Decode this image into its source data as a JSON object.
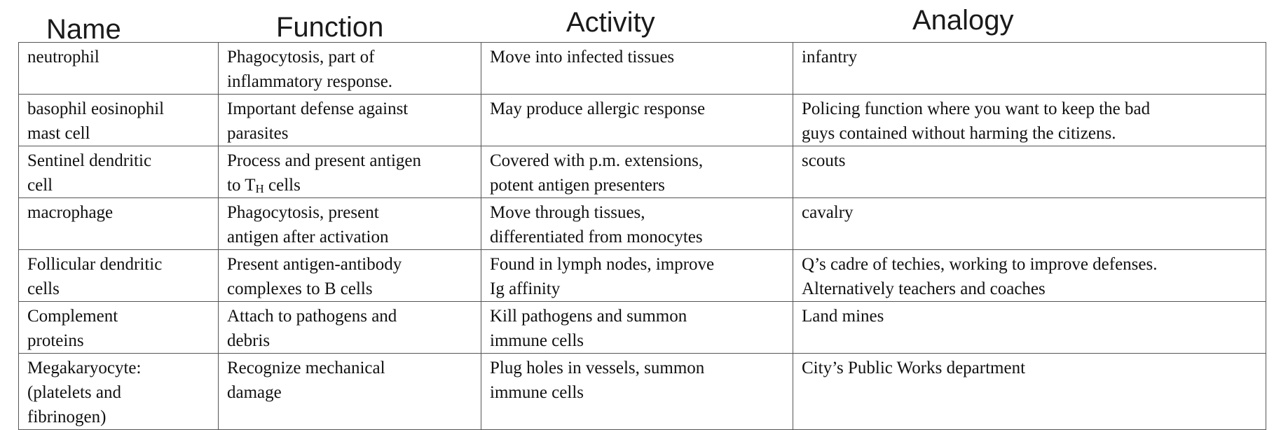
{
  "headers": {
    "name": "Name",
    "function": "Function",
    "activity": "Activity",
    "analogy": "Analogy"
  },
  "rows": [
    {
      "name": [
        "neutrophil"
      ],
      "function": [
        "Phagocytosis, part of",
        "inflammatory response."
      ],
      "activity": [
        "Move into infected tissues"
      ],
      "analogy": [
        "infantry"
      ]
    },
    {
      "name": [
        "basophil eosinophil",
        "mast cell"
      ],
      "function": [
        "Important defense against",
        "parasites"
      ],
      "activity": [
        "May produce allergic response"
      ],
      "analogy": [
        "Policing function where you want to keep the bad",
        "guys contained without harming the citizens."
      ]
    },
    {
      "name": [
        "Sentinel dendritic",
        "cell"
      ],
      "function": [
        "Process and present antigen"
      ],
      "function_line2": {
        "prefix": "to T",
        "subscript": "H",
        "suffix": " cells"
      },
      "activity": [
        "Covered with p.m. extensions,",
        "potent antigen presenters"
      ],
      "analogy": [
        "scouts"
      ]
    },
    {
      "name": [
        "macrophage"
      ],
      "function": [
        "Phagocytosis, present",
        "antigen after activation"
      ],
      "activity": [
        "Move through tissues,",
        "differentiated from monocytes"
      ],
      "analogy": [
        "cavalry"
      ]
    },
    {
      "name": [
        "Follicular dendritic",
        "cells"
      ],
      "function": [
        "Present antigen-antibody",
        "complexes to B cells"
      ],
      "activity": [
        "Found in lymph nodes, improve",
        "Ig affinity"
      ],
      "analogy": [
        "Q’s cadre of techies, working to improve defenses.",
        "Alternatively teachers and coaches"
      ]
    },
    {
      "name": [
        "Complement",
        "proteins"
      ],
      "function": [
        "Attach to pathogens and",
        "debris"
      ],
      "activity": [
        "Kill pathogens and summon",
        "immune cells"
      ],
      "analogy": [
        "Land mines"
      ]
    },
    {
      "name": [
        "Megakaryocyte:",
        "(platelets and",
        "fibrinogen)"
      ],
      "function": [
        "Recognize mechanical",
        "damage"
      ],
      "activity": [
        "Plug holes in vessels, summon",
        "immune cells"
      ],
      "analogy": [
        "City’s Public Works department"
      ]
    }
  ]
}
